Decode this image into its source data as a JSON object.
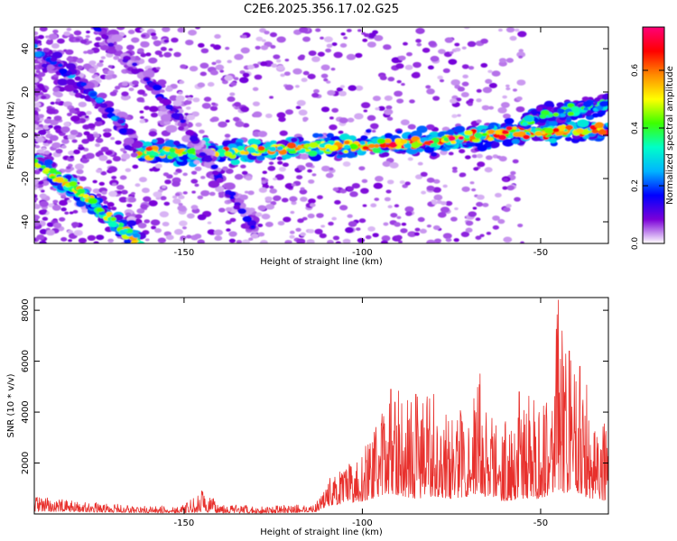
{
  "title": "C2E6.2025.356.17.02.G25",
  "chart_data": [
    {
      "type": "heatmap",
      "name": "spectrogram",
      "xlabel": "Height of straight line (km)",
      "ylabel": "Frequency (Hz)",
      "xlim": [
        -192,
        -31
      ],
      "ylim": [
        -50,
        50
      ],
      "xticks": [
        -150,
        -100,
        -50
      ],
      "yticks": [
        -40,
        -20,
        0,
        20,
        40
      ],
      "colorbar": {
        "label": "Normalized spectral amplitude",
        "range": [
          0,
          0.75
        ],
        "ticks": [
          0.0,
          0.2,
          0.4,
          0.6
        ],
        "tick_labels": [
          "0.0",
          "0.2",
          "0.4",
          "0.6"
        ],
        "colors": [
          "#ffffff",
          "#7b00d8",
          "#0000ff",
          "#00b4ff",
          "#00ffc8",
          "#3cff00",
          "#ffff00",
          "#ff8c00",
          "#ff0000",
          "#ff0078"
        ]
      },
      "ridges": [
        {
          "name": "main-trend",
          "points": [
            [
              -163,
              -8
            ],
            [
              -150,
              -8
            ],
            [
              -140,
              -8
            ],
            [
              -130,
              -7
            ],
            [
              -120,
              -6
            ],
            [
              -110,
              -5
            ],
            [
              -100,
              -5
            ],
            [
              -90,
              -4
            ],
            [
              -80,
              -3
            ],
            [
              -70,
              -1
            ],
            [
              -60,
              1
            ],
            [
              -50,
              1
            ],
            [
              -40,
              2
            ],
            [
              -31,
              2
            ]
          ],
          "amplitude": 0.45
        },
        {
          "name": "upper-branch",
          "points": [
            [
              -55,
              6
            ],
            [
              -50,
              9
            ],
            [
              -45,
              10
            ],
            [
              -40,
              12
            ],
            [
              -31,
              15
            ]
          ],
          "amplitude": 0.3
        },
        {
          "name": "descending-left",
          "points": [
            [
              -192,
              -12
            ],
            [
              -185,
              -20
            ],
            [
              -178,
              -28
            ],
            [
              -172,
              -37
            ],
            [
              -167,
              -44
            ],
            [
              -162,
              -50
            ]
          ],
          "amplitude": 0.4
        },
        {
          "name": "faint-diagonal-1",
          "points": [
            [
              -192,
              40
            ],
            [
              -180,
              25
            ],
            [
              -170,
              10
            ],
            [
              -163,
              -5
            ]
          ],
          "amplitude": 0.18
        },
        {
          "name": "faint-diagonal-2",
          "points": [
            [
              -175,
              50
            ],
            [
              -160,
              25
            ],
            [
              -150,
              5
            ],
            [
              -140,
              -20
            ],
            [
              -130,
              -45
            ]
          ],
          "amplitude": 0.12
        }
      ]
    },
    {
      "type": "line",
      "name": "snr",
      "xlabel": "Height of straight line (km)",
      "ylabel": "SNR (10 * v/v)",
      "xlim": [
        -192,
        -31
      ],
      "ylim": [
        0,
        8500
      ],
      "xticks": [
        -150,
        -100,
        -50
      ],
      "yticks": [
        2000,
        4000,
        6000,
        8000
      ],
      "color": "#e8302c",
      "envelope": {
        "x": [
          -192,
          -180,
          -170,
          -160,
          -150,
          -145,
          -140,
          -130,
          -120,
          -113,
          -110,
          -105,
          -100,
          -95,
          -92,
          -85,
          -80,
          -75,
          -70,
          -67,
          -65,
          -60,
          -55,
          -50,
          -47,
          -45,
          -43,
          -40,
          -35,
          -31
        ],
        "low": [
          100,
          80,
          60,
          40,
          40,
          60,
          40,
          30,
          50,
          80,
          300,
          400,
          500,
          700,
          800,
          600,
          700,
          600,
          700,
          800,
          600,
          500,
          600,
          600,
          800,
          900,
          800,
          700,
          600,
          500
        ],
        "high": [
          700,
          500,
          400,
          300,
          350,
          900,
          450,
          300,
          350,
          400,
          1400,
          1800,
          2500,
          3800,
          4900,
          4700,
          4700,
          3800,
          4700,
          5500,
          4200,
          3800,
          4800,
          4500,
          6200,
          8400,
          6500,
          5800,
          4800,
          3200
        ]
      },
      "peaks": [
        [
          -145,
          900
        ],
        [
          -92,
          4900
        ],
        [
          -85,
          4700
        ],
        [
          -80,
          4700
        ],
        [
          -67,
          5500
        ],
        [
          -56,
          4800
        ],
        [
          -45,
          8400
        ],
        [
          -42,
          6400
        ],
        [
          -39,
          5800
        ]
      ]
    }
  ]
}
